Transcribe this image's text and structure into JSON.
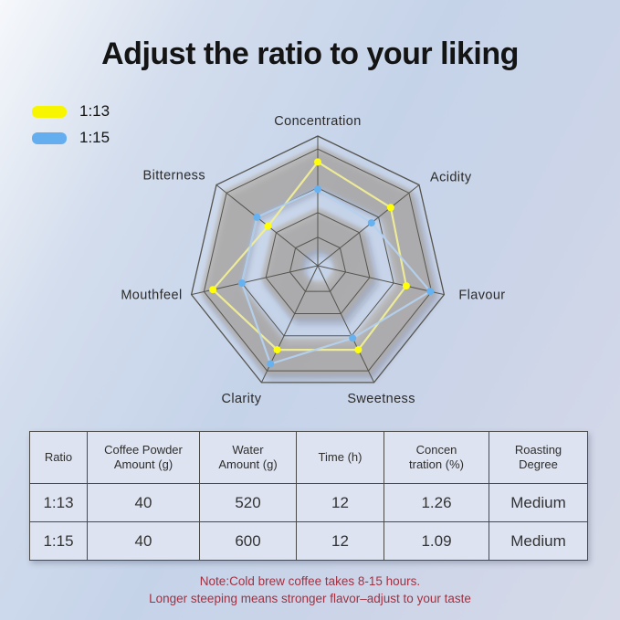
{
  "title": "Adjust the ratio to your liking",
  "legend": [
    {
      "label": "1:13",
      "color": "#f7f600"
    },
    {
      "label": "1:15",
      "color": "#64aef0"
    }
  ],
  "chart_data": {
    "type": "radar",
    "categories": [
      "Concentration",
      "Acidity",
      "Flavour",
      "Sweetness",
      "Clarity",
      "Mouthfeel",
      "Bitterness"
    ],
    "scale_min": 0,
    "scale_max": 1,
    "grid_levels": [
      0.22,
      0.41,
      0.6,
      0.9,
      1.0
    ],
    "series": [
      {
        "name": "1:13",
        "line_color": "rgba(240,238,150,0.95)",
        "dot_color": "#ffff0a",
        "values": [
          0.8,
          0.72,
          0.7,
          0.72,
          0.72,
          0.83,
          0.49
        ]
      },
      {
        "name": "1:15",
        "line_color": "rgba(180,209,238,0.95)",
        "dot_color": "#66b1f0",
        "values": [
          0.59,
          0.53,
          0.89,
          0.62,
          0.84,
          0.6,
          0.6
        ]
      }
    ],
    "bands": [
      {
        "outer": 0.93,
        "inner": 0.62
      },
      {
        "outer": 0.45,
        "inner": 0.13
      }
    ],
    "band_color": "#b4ab9e",
    "grid_color": "#55544e",
    "legend_position": "top-left"
  },
  "table": {
    "headers": [
      "Ratio",
      "Coffee Powder\nAmount (g)",
      "Water\nAmount (g)",
      "Time (h)",
      "Concen\ntration (%)",
      "Roasting\nDegree"
    ],
    "rows": [
      [
        "1:13",
        "40",
        "520",
        "12",
        "1.26",
        "Medium"
      ],
      [
        "1:15",
        "40",
        "600",
        "12",
        "1.09",
        "Medium"
      ]
    ]
  },
  "note": {
    "line1": "Note:Cold brew coffee takes 8-15 hours.",
    "line2": "Longer steeping means stronger flavor–adjust to your taste"
  }
}
